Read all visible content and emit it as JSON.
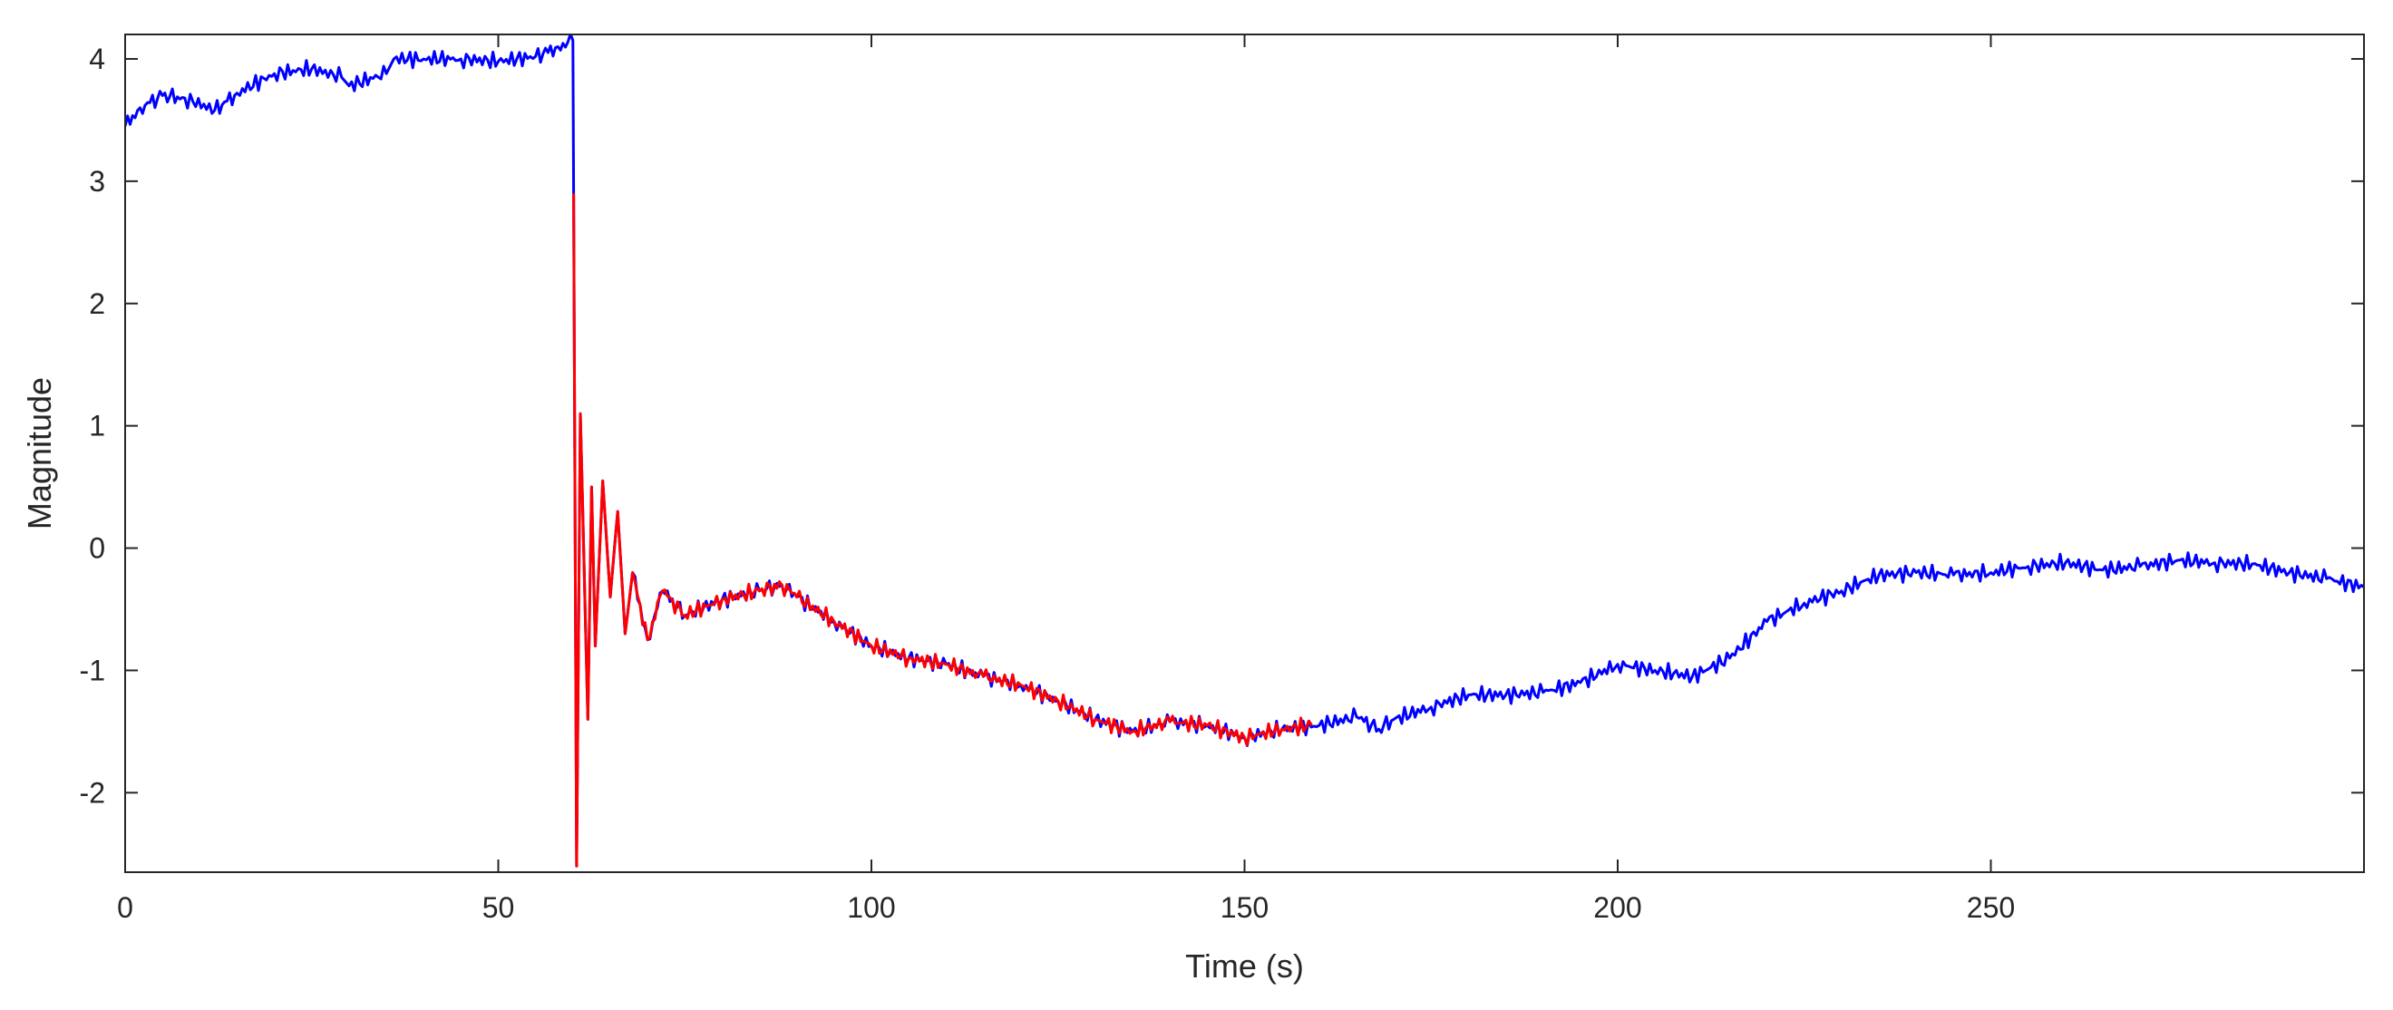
{
  "chart_data": {
    "type": "line",
    "title": "",
    "xlabel": "Time (s)",
    "ylabel": "Magnitude",
    "xlim": [
      0,
      300
    ],
    "ylim": [
      -2.65,
      4.2
    ],
    "x_ticks": [
      0,
      50,
      100,
      150,
      200,
      250
    ],
    "y_ticks": [
      -2,
      -1,
      0,
      1,
      2,
      3,
      4
    ],
    "x_tick_labels": [
      "0",
      "50",
      "100",
      "150",
      "200",
      "250"
    ],
    "y_tick_labels": [
      "-2",
      "-1",
      "0",
      "1",
      "2",
      "3",
      "4"
    ],
    "grid": false,
    "legend": "none",
    "series": [
      {
        "color": "#0000ff",
        "x": [
          0,
          2,
          5,
          8,
          12,
          15,
          20,
          25,
          29,
          30,
          35,
          36,
          40,
          45,
          50,
          55,
          58,
          60,
          60.1,
          60.5,
          61,
          62,
          62.5,
          63,
          64,
          65,
          66,
          67,
          68,
          70,
          72,
          75,
          80,
          85,
          88,
          90,
          95,
          100,
          105,
          110,
          115,
          120,
          125,
          130,
          135,
          140,
          145,
          150,
          155,
          160,
          165,
          168,
          170,
          175,
          180,
          185,
          190,
          195,
          200,
          205,
          210,
          215,
          220,
          225,
          230,
          235,
          240,
          245,
          250,
          255,
          260,
          265,
          270,
          275,
          280,
          285,
          290,
          295,
          300
        ],
        "y": [
          3.45,
          3.6,
          3.7,
          3.68,
          3.58,
          3.72,
          3.88,
          3.92,
          3.85,
          3.78,
          3.88,
          4.0,
          4.0,
          4.0,
          3.98,
          4.02,
          4.1,
          4.15,
          2.9,
          -2.6,
          1.1,
          -1.4,
          0.5,
          -0.8,
          0.55,
          -0.4,
          0.3,
          -0.7,
          -0.2,
          -0.75,
          -0.35,
          -0.55,
          -0.42,
          -0.35,
          -0.3,
          -0.4,
          -0.6,
          -0.8,
          -0.9,
          -0.95,
          -1.05,
          -1.12,
          -1.25,
          -1.4,
          -1.5,
          -1.42,
          -1.45,
          -1.55,
          -1.48,
          -1.45,
          -1.38,
          -1.48,
          -1.4,
          -1.3,
          -1.2,
          -1.2,
          -1.18,
          -1.1,
          -0.95,
          -1.0,
          -1.05,
          -0.9,
          -0.6,
          -0.45,
          -0.35,
          -0.22,
          -0.2,
          -0.22,
          -0.2,
          -0.15,
          -0.12,
          -0.18,
          -0.15,
          -0.1,
          -0.12,
          -0.13,
          -0.2,
          -0.25,
          -0.32
        ]
      },
      {
        "color": "#ff0000",
        "x": [
          60.1,
          60.5,
          61,
          62,
          62.5,
          63,
          64,
          65,
          66,
          67,
          68,
          70,
          72,
          75,
          80,
          85,
          88,
          90,
          95,
          100,
          105,
          110,
          115,
          120,
          125,
          130,
          135,
          140,
          145,
          150,
          155,
          159
        ],
        "y": [
          2.9,
          -2.6,
          1.1,
          -1.4,
          0.5,
          -0.8,
          0.55,
          -0.4,
          0.3,
          -0.7,
          -0.2,
          -0.75,
          -0.35,
          -0.55,
          -0.42,
          -0.35,
          -0.3,
          -0.4,
          -0.6,
          -0.8,
          -0.9,
          -0.95,
          -1.05,
          -1.12,
          -1.25,
          -1.4,
          -1.5,
          -1.42,
          -1.45,
          -1.55,
          -1.48,
          -1.45
        ]
      }
    ]
  }
}
